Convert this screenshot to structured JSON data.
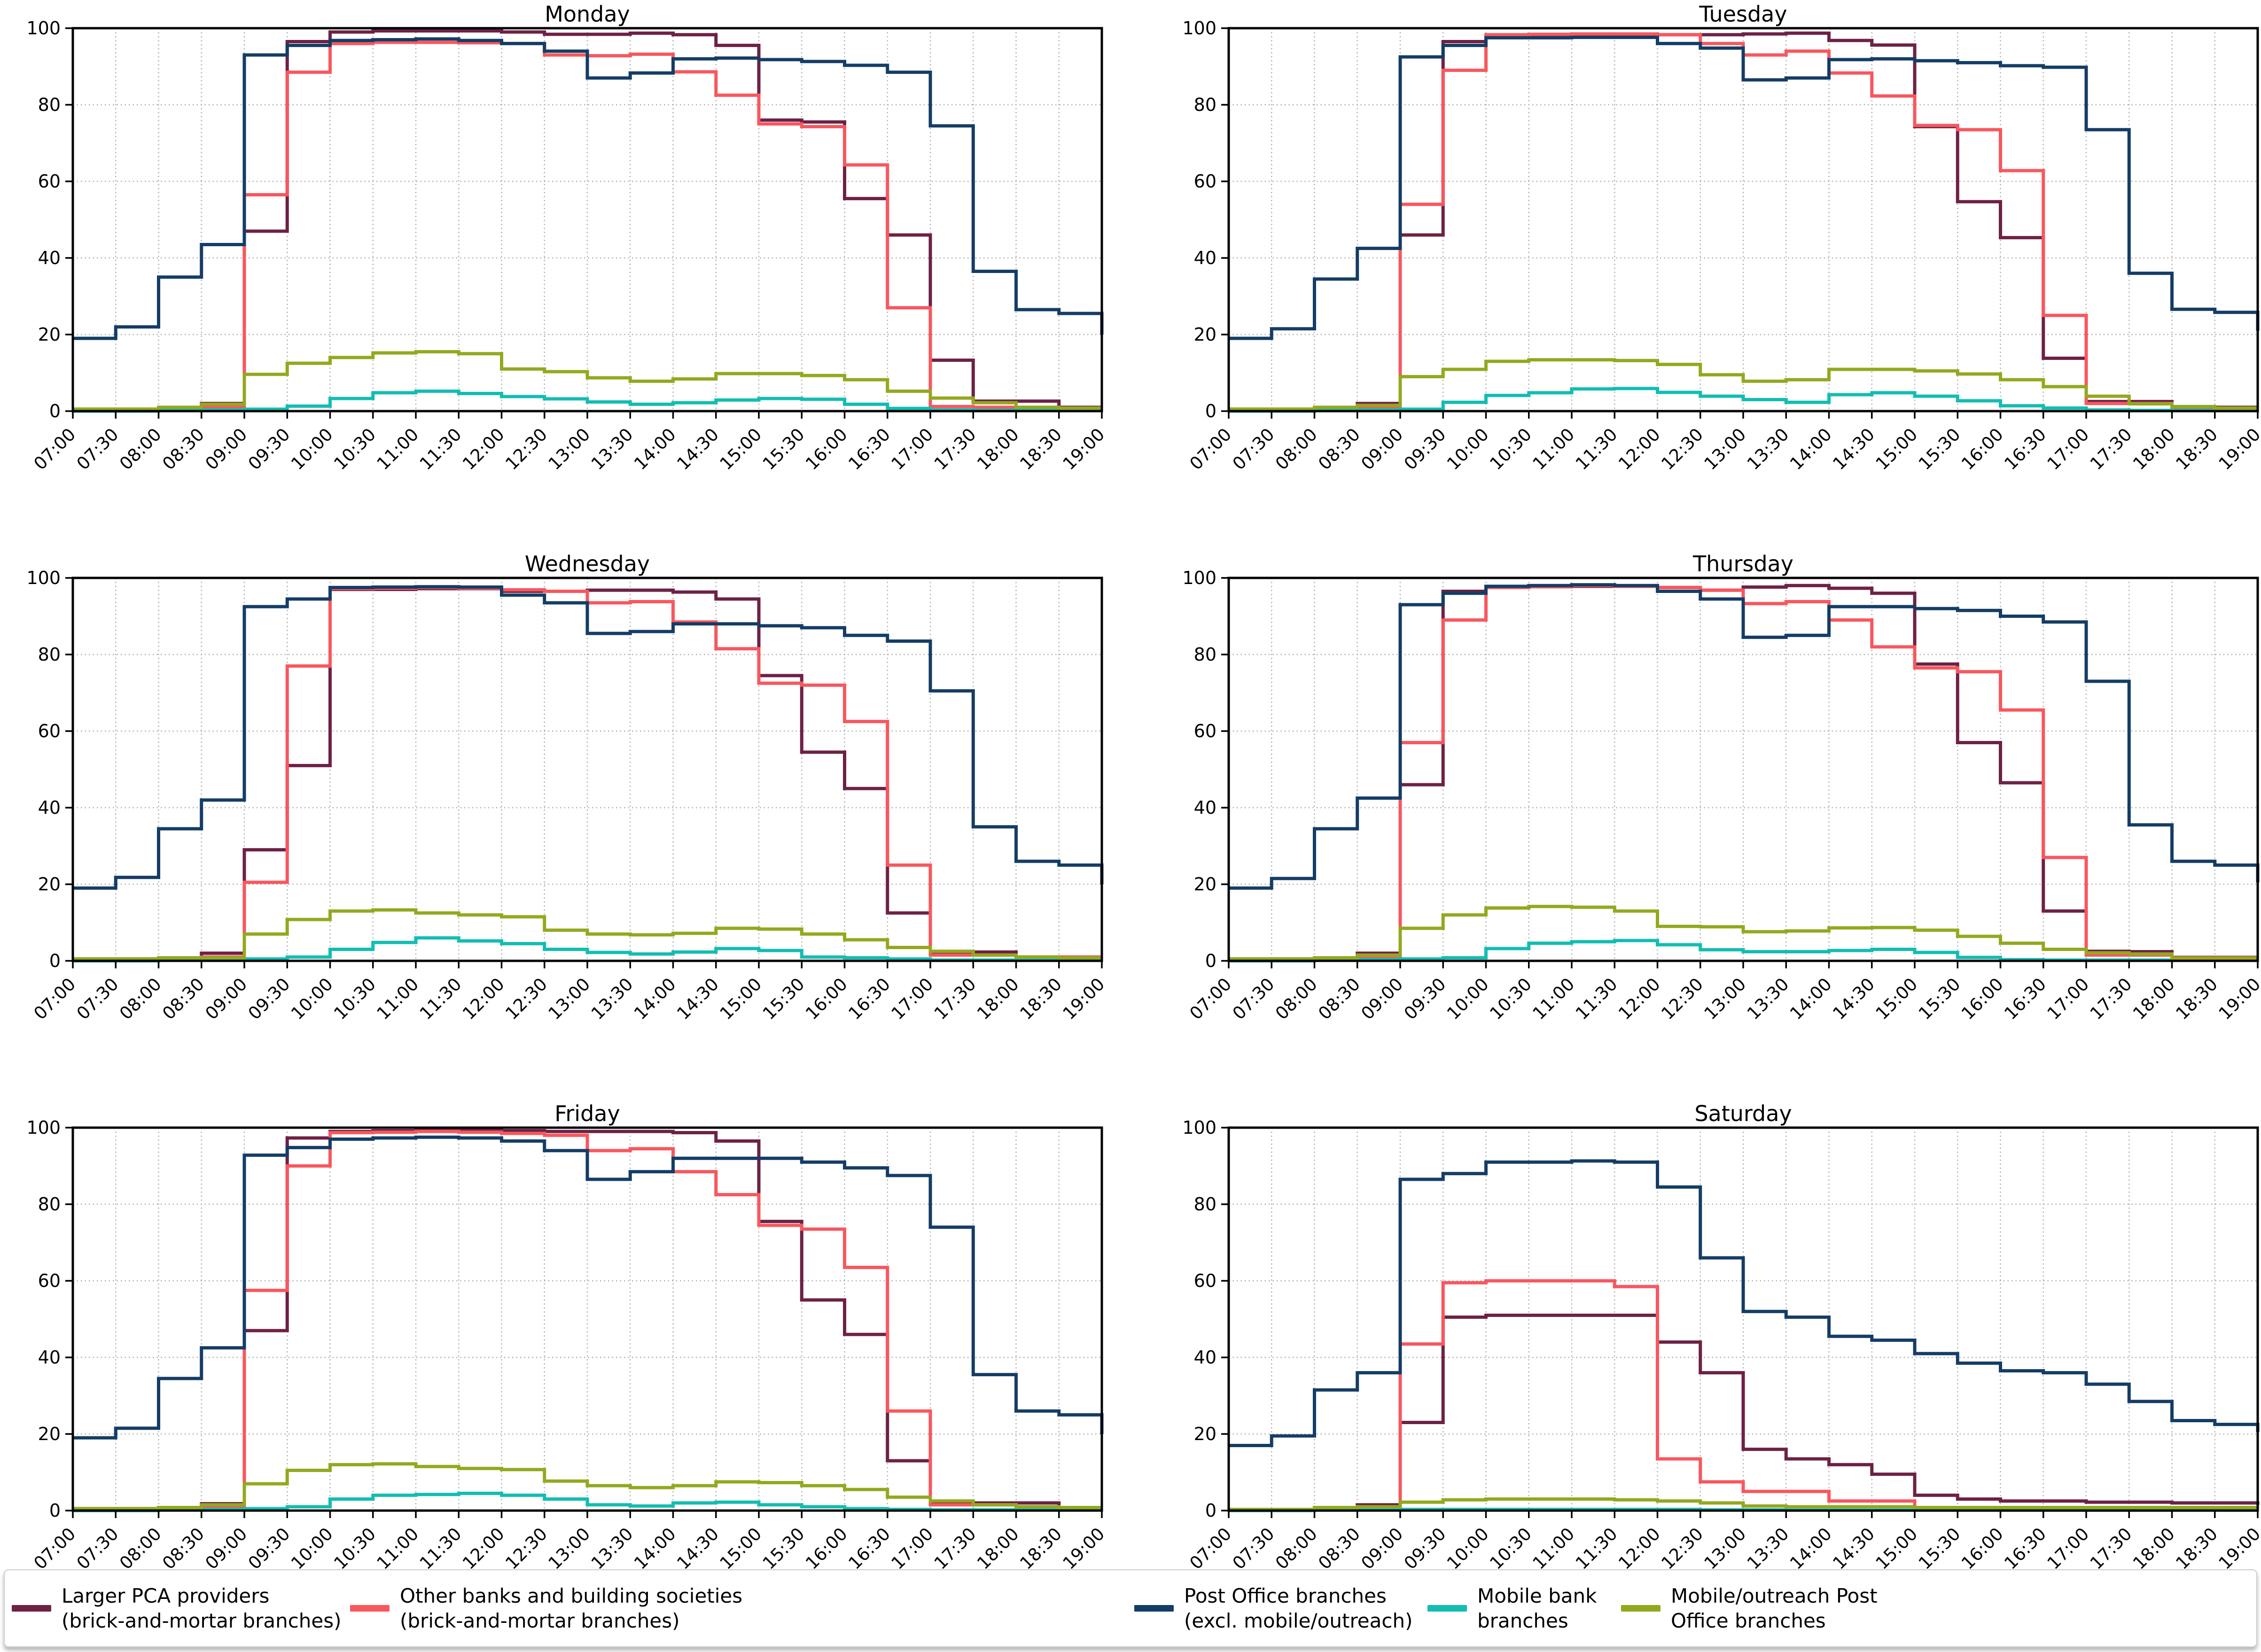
{
  "chart_data": {
    "type": "step-line",
    "step_mode": "post",
    "ylim": [
      0,
      100
    ],
    "y_ticks": [
      "0",
      "20",
      "40",
      "60",
      "80",
      "100"
    ],
    "grid": "dotted",
    "legend_position": "bottom",
    "x_categories": [
      "07:00",
      "07:30",
      "08:00",
      "08:30",
      "09:00",
      "09:30",
      "10:00",
      "10:30",
      "11:00",
      "11:30",
      "12:00",
      "12:30",
      "13:00",
      "13:30",
      "14:00",
      "14:30",
      "15:00",
      "15:30",
      "16:00",
      "16:30",
      "17:00",
      "17:30",
      "18:00",
      "18:30",
      "19:00"
    ],
    "series_legend": [
      {
        "key": "larger_pca",
        "label": "Larger PCA providers\n(brick-and-mortar branches)",
        "color": "#6d2145"
      },
      {
        "key": "other_banks",
        "label": "Other banks and building societies\n(brick-and-mortar branches)",
        "color": "#f8575e"
      },
      {
        "key": "post_office",
        "label": "Post Office branches\n(excl. mobile/outreach)",
        "color": "#143d66"
      },
      {
        "key": "mobile_bank",
        "label": "Mobile bank\nbranches",
        "color": "#12bdb2"
      },
      {
        "key": "mobile_outreach",
        "label": "Mobile/outreach Post\nOffice branches",
        "color": "#94a81e"
      }
    ],
    "panels": [
      {
        "title": "Monday",
        "series": {
          "larger_pca": [
            0.5,
            0.5,
            0.8,
            2,
            47,
            96.5,
            99,
            99.3,
            99.3,
            99.3,
            99,
            98.4,
            98.4,
            98.7,
            98.3,
            95.5,
            76,
            75.5,
            55.5,
            46,
            13.3,
            2.6,
            2.6,
            1,
            1
          ],
          "other_banks": [
            0.5,
            0.5,
            0.5,
            1,
            56.5,
            88.5,
            96,
            96.3,
            96.3,
            96.2,
            96,
            93,
            92.8,
            93.2,
            88.6,
            82.5,
            75,
            74.3,
            64.3,
            27,
            1.2,
            1,
            1,
            0.8,
            0.8
          ],
          "post_office": [
            19,
            22,
            35,
            43.5,
            93,
            95.5,
            96.8,
            97,
            97.2,
            96.8,
            96,
            94,
            87,
            88.3,
            92,
            92.2,
            91.8,
            91.3,
            90.3,
            88.5,
            74.5,
            36.5,
            26.5,
            25.5,
            20
          ],
          "mobile_bank": [
            0,
            0,
            0.2,
            0.3,
            0.5,
            1.3,
            3.3,
            4.8,
            5.2,
            4.6,
            3.8,
            3.2,
            2.4,
            1.8,
            2.2,
            2.9,
            3.3,
            3.1,
            1.8,
            0.7,
            0.3,
            0.2,
            0.2,
            0.2,
            0.2
          ],
          "mobile_outreach": [
            0.5,
            0.5,
            1,
            1.8,
            9.6,
            12.5,
            14,
            15.2,
            15.5,
            15,
            11,
            10.3,
            8.7,
            7.8,
            8.4,
            9.8,
            9.8,
            9.3,
            8.2,
            5.2,
            3.4,
            2.2,
            1,
            0.8,
            0.8
          ]
        }
      },
      {
        "title": "Tuesday",
        "series": {
          "larger_pca": [
            0.5,
            0.5,
            0.8,
            2,
            46,
            96.5,
            98,
            98.2,
            98.3,
            98.3,
            98.3,
            98.3,
            98.5,
            98.7,
            96.8,
            95.6,
            74.3,
            54.7,
            45.3,
            13.8,
            2.5,
            2.5,
            1,
            1,
            1
          ],
          "other_banks": [
            0.5,
            0.5,
            0.5,
            1,
            54,
            89,
            98.3,
            98.4,
            98.5,
            98.5,
            98.3,
            96,
            93,
            94,
            88.3,
            82.3,
            74.6,
            73.5,
            62.8,
            25,
            2,
            2,
            1,
            0.8,
            0.8
          ],
          "post_office": [
            19,
            21.5,
            34.5,
            42.5,
            92.5,
            95.5,
            97.5,
            97.5,
            97.6,
            97.6,
            96,
            94.8,
            86.5,
            87,
            91.8,
            92,
            91.5,
            91,
            90.2,
            89.8,
            73.5,
            36,
            26.6,
            25.8,
            21
          ],
          "mobile_bank": [
            0,
            0,
            0.2,
            0.3,
            0.5,
            2.3,
            4.1,
            4.8,
            5.8,
            5.9,
            4.9,
            3.9,
            3,
            2.3,
            4.3,
            4.8,
            3.9,
            2.7,
            1.4,
            0.8,
            0.3,
            0.2,
            0.2,
            0.2,
            0.2
          ],
          "mobile_outreach": [
            0.5,
            0.5,
            1,
            1.5,
            9,
            10.9,
            13,
            13.4,
            13.4,
            13.2,
            12.2,
            9.5,
            7.8,
            8.2,
            10.9,
            10.9,
            10.5,
            9.7,
            8.2,
            6.4,
            3.9,
            1.9,
            1.2,
            0.8,
            0.8
          ]
        }
      },
      {
        "title": "Wednesday",
        "series": {
          "larger_pca": [
            0.5,
            0.5,
            0.8,
            2,
            29,
            51,
            97,
            97,
            97.2,
            97.2,
            96.5,
            96.5,
            96.8,
            96.8,
            96.3,
            94.5,
            74.5,
            54.5,
            45,
            12.5,
            2.3,
            2.3,
            1,
            1,
            1
          ],
          "other_banks": [
            0.5,
            0.5,
            0.5,
            1,
            20.5,
            77,
            97.2,
            97.3,
            97.5,
            97.3,
            96.9,
            96.5,
            93.5,
            93.8,
            88.5,
            81.5,
            72.5,
            72,
            62.5,
            25,
            1.5,
            1.5,
            1,
            1,
            1
          ],
          "post_office": [
            19,
            21.8,
            34.5,
            42,
            92.5,
            94.5,
            97.5,
            97.6,
            97.7,
            97.6,
            95.5,
            93.5,
            85.5,
            86,
            88,
            88,
            87.5,
            87,
            85,
            83.5,
            70.5,
            35,
            26,
            25,
            20
          ],
          "mobile_bank": [
            0,
            0,
            0.2,
            0.3,
            0.5,
            1,
            3,
            4.8,
            6,
            5.2,
            4.5,
            3,
            2.2,
            1.8,
            2.3,
            3.2,
            2.7,
            1,
            0.8,
            0.5,
            0.2,
            0.2,
            0.2,
            0.2,
            0.2
          ],
          "mobile_outreach": [
            0.5,
            0.5,
            0.8,
            0.8,
            7,
            10.8,
            13,
            13.3,
            12.5,
            12,
            11.5,
            8,
            7,
            6.8,
            7.2,
            8.5,
            8.3,
            7,
            5.5,
            3.5,
            2.5,
            1.5,
            1,
            0.8,
            0.8
          ]
        }
      },
      {
        "title": "Thursday",
        "series": {
          "larger_pca": [
            0.5,
            0.5,
            0.8,
            2,
            46,
            96.5,
            97.7,
            97.7,
            97.8,
            97.8,
            97.5,
            96.8,
            97.6,
            98,
            97.3,
            96,
            77.5,
            57,
            46.5,
            13,
            2.5,
            2.4,
            0.9,
            0.9,
            0.9
          ],
          "other_banks": [
            0.5,
            0.5,
            0.5,
            1,
            57,
            89,
            97.5,
            97.7,
            98,
            97.8,
            97.5,
            96.8,
            93.3,
            93.8,
            89,
            82,
            76.5,
            75.5,
            65.5,
            27,
            1.5,
            1.5,
            0.8,
            0.8,
            0.8
          ],
          "post_office": [
            19,
            21.5,
            34.5,
            42.5,
            93,
            96,
            97.8,
            98,
            98.2,
            98,
            96.5,
            94.5,
            84.5,
            85,
            92.5,
            92.5,
            92,
            91.5,
            90,
            88.5,
            73,
            35.5,
            26,
            25,
            20.5
          ],
          "mobile_bank": [
            0,
            0,
            0.2,
            0.3,
            0.5,
            0.8,
            3.2,
            4.6,
            5,
            5.3,
            4.2,
            2.9,
            2.4,
            2.4,
            2.7,
            3,
            2.2,
            0.9,
            0.3,
            0.2,
            0.2,
            0.2,
            0.2,
            0.2,
            0.2
          ],
          "mobile_outreach": [
            0.5,
            0.5,
            0.8,
            1.5,
            8.5,
            12,
            13.8,
            14.2,
            14,
            13,
            9,
            8.9,
            7.6,
            7.8,
            8.6,
            8.7,
            8,
            6.4,
            4.6,
            3,
            2.1,
            1.8,
            0.7,
            0.7,
            0.7
          ]
        }
      },
      {
        "title": "Friday",
        "series": {
          "larger_pca": [
            0.5,
            0.5,
            0.8,
            1.8,
            47,
            97.3,
            99,
            99.2,
            99.3,
            99.3,
            99.2,
            99,
            99,
            99,
            98.7,
            96.5,
            75.5,
            55,
            46,
            13,
            2,
            2,
            2,
            0.8,
            0.8
          ],
          "other_banks": [
            0.5,
            0.5,
            0.5,
            1,
            57.5,
            90,
            98.7,
            98.8,
            99,
            98.8,
            98.5,
            98,
            94,
            94.5,
            88.5,
            82.5,
            74.5,
            73.5,
            63.5,
            26,
            1.5,
            1.5,
            1,
            0.8,
            0.8
          ],
          "post_office": [
            19,
            21.5,
            34.5,
            42.5,
            92.8,
            94.8,
            97,
            97.3,
            97.5,
            97.3,
            96.5,
            94,
            86.5,
            88.5,
            92,
            92,
            92,
            91,
            89.5,
            87.5,
            74,
            35.5,
            26,
            25,
            20
          ],
          "mobile_bank": [
            0,
            0,
            0.2,
            0.3,
            0.5,
            1,
            3,
            4,
            4.2,
            4.5,
            4,
            3,
            1.5,
            1.2,
            2,
            2.2,
            1.5,
            1,
            0.5,
            0.3,
            0.2,
            0.2,
            0.2,
            0.2,
            0.2
          ],
          "mobile_outreach": [
            0.5,
            0.5,
            0.8,
            1.5,
            7,
            10.5,
            12,
            12.2,
            11.5,
            11,
            10.7,
            7.7,
            6.5,
            6,
            6.5,
            7.5,
            7.3,
            6.5,
            5.5,
            3.5,
            2.5,
            1.5,
            1,
            0.8,
            0.8
          ]
        }
      },
      {
        "title": "Saturday",
        "series": {
          "larger_pca": [
            0.3,
            0.3,
            0.5,
            1.5,
            23,
            50.5,
            51,
            51,
            51,
            51,
            44,
            36,
            16,
            13.5,
            12,
            9.5,
            4,
            3,
            2.5,
            2.5,
            2.2,
            2.2,
            2,
            2,
            1.5
          ],
          "other_banks": [
            0.3,
            0.3,
            0.5,
            0.8,
            43.5,
            59.5,
            60,
            60,
            60,
            58.5,
            13.5,
            7.5,
            5,
            5,
            2.5,
            2.5,
            0.5,
            0.4,
            0.4,
            0.4,
            0.4,
            0.4,
            0.4,
            0.4,
            0.4
          ],
          "post_office": [
            17,
            19.5,
            31.5,
            36,
            86.5,
            88,
            91,
            91,
            91.3,
            91,
            84.5,
            66,
            52,
            50.5,
            45.5,
            44.5,
            41,
            38.5,
            36.5,
            36,
            33,
            28.5,
            23.5,
            22.5,
            20.5
          ],
          "mobile_bank": [
            0,
            0,
            0.1,
            0.2,
            0.3,
            0.3,
            0.3,
            0.3,
            0.3,
            0.3,
            0.3,
            0.2,
            0.2,
            0.1,
            0.1,
            0.1,
            0.1,
            0.1,
            0.1,
            0.1,
            0.1,
            0.1,
            0.1,
            0.1,
            0.1
          ],
          "mobile_outreach": [
            0.3,
            0.3,
            0.8,
            1,
            2.2,
            2.8,
            3,
            3,
            3,
            2.8,
            2.5,
            2,
            1.2,
            1,
            1,
            1,
            0.8,
            0.8,
            0.8,
            0.8,
            0.8,
            0.8,
            0.8,
            0.8,
            0.8
          ]
        }
      }
    ],
    "style": {
      "grid_color": "#b0b0b0",
      "spine_color": "#000000",
      "background": "#ffffff"
    }
  }
}
